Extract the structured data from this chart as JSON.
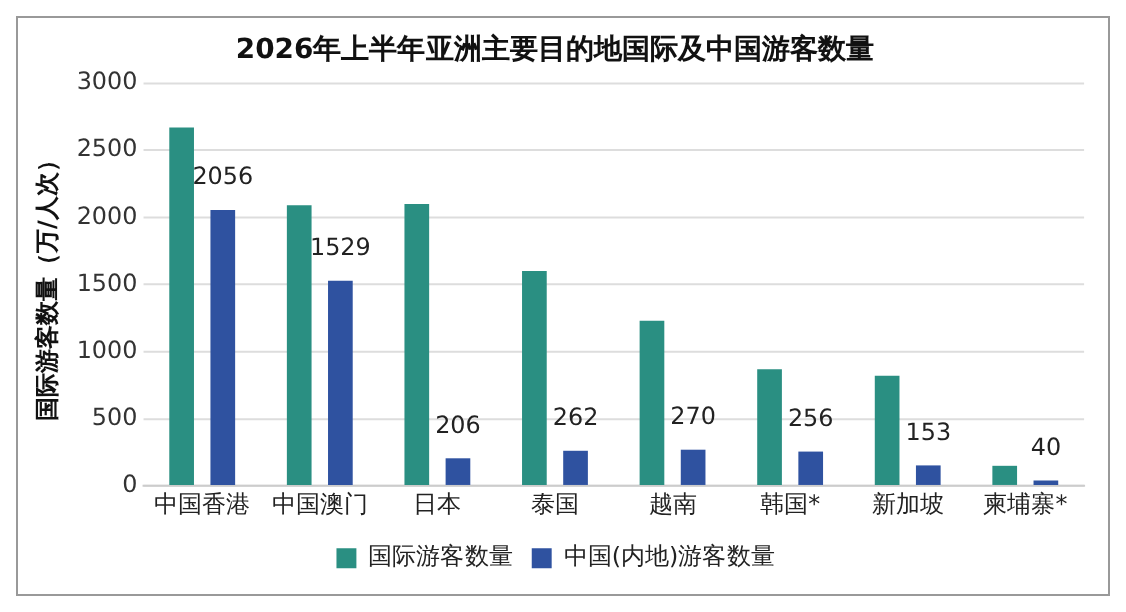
{
  "chart_data": {
    "type": "bar",
    "title": "2026年上半年亚洲主要目的地国际及中国游客数量",
    "ylabel": "国际游客数量（万/人次）",
    "categories": [
      "中国香港",
      "中国澳门",
      "日本",
      "泰国",
      "越南",
      "韩国*",
      "新加坡",
      "柬埔寨*"
    ],
    "series": [
      {
        "name": "国际游客数量",
        "color": "#2a8f82",
        "values": [
          2670,
          2090,
          2100,
          1600,
          1230,
          870,
          820,
          150
        ]
      },
      {
        "name": "中国(内地)游客数量",
        "color": "#2f52a0",
        "values": [
          2056,
          1529,
          206,
          262,
          270,
          256,
          153,
          40
        ],
        "value_labels": [
          "2056",
          "1529",
          "206",
          "262",
          "270",
          "256",
          "153",
          "40"
        ]
      }
    ],
    "ylim": [
      0,
      3000
    ],
    "yticks": [
      0,
      500,
      1000,
      1500,
      2000,
      2500,
      3000
    ],
    "grid": "y",
    "legend": "bottom"
  }
}
